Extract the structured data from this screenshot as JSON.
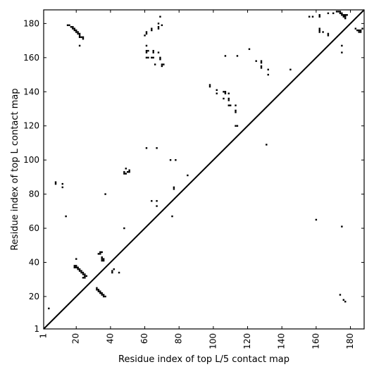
{
  "chart_data": {
    "type": "scatter",
    "title": "",
    "xlabel": "Residue index of top L/5 contact map",
    "ylabel": "Residue index of top L contact map",
    "xlim": [
      1,
      188
    ],
    "ylim": [
      1,
      188
    ],
    "xticks": [
      1,
      20,
      40,
      60,
      80,
      100,
      120,
      140,
      160,
      180
    ],
    "yticks": [
      1,
      20,
      40,
      60,
      80,
      100,
      120,
      140,
      160,
      180
    ],
    "xtick_labels": [
      "1",
      "20",
      "40",
      "60",
      "80",
      "100",
      "120",
      "140",
      "160",
      "180"
    ],
    "ytick_labels": [
      "1",
      "20",
      "40",
      "60",
      "80",
      "100",
      "120",
      "140",
      "160",
      "180"
    ],
    "diagonal": true,
    "grid": false,
    "marker": "square",
    "point_color": "#000000",
    "upper_triangle_contacts": [
      [
        15,
        179
      ],
      [
        16,
        179
      ],
      [
        17,
        178
      ],
      [
        18,
        178
      ],
      [
        18,
        177
      ],
      [
        19,
        177
      ],
      [
        19,
        176
      ],
      [
        20,
        176
      ],
      [
        20,
        175
      ],
      [
        21,
        175
      ],
      [
        21,
        174
      ],
      [
        22,
        174
      ],
      [
        22,
        173
      ],
      [
        22,
        172
      ],
      [
        23,
        172
      ],
      [
        24,
        172
      ],
      [
        24,
        171
      ],
      [
        22,
        167
      ],
      [
        60,
        173
      ],
      [
        61,
        174
      ],
      [
        61,
        175
      ],
      [
        64,
        176
      ],
      [
        64,
        177
      ],
      [
        68,
        177
      ],
      [
        68,
        178
      ],
      [
        68,
        180
      ],
      [
        69,
        184
      ],
      [
        70,
        179
      ],
      [
        61,
        167
      ],
      [
        61,
        164
      ],
      [
        61,
        163
      ],
      [
        62,
        164
      ],
      [
        65,
        164
      ],
      [
        65,
        163
      ],
      [
        68,
        163
      ],
      [
        61,
        160
      ],
      [
        62,
        160
      ],
      [
        64,
        160
      ],
      [
        65,
        160
      ],
      [
        69,
        160
      ],
      [
        69,
        159
      ],
      [
        66,
        156
      ],
      [
        70,
        156
      ],
      [
        70,
        155
      ],
      [
        71,
        156
      ],
      [
        61,
        107
      ],
      [
        67,
        107
      ],
      [
        75,
        100
      ],
      [
        78,
        100
      ],
      [
        77,
        84
      ],
      [
        77,
        83
      ],
      [
        85,
        91
      ],
      [
        76,
        67
      ],
      [
        98,
        144
      ],
      [
        98,
        143
      ],
      [
        102,
        141
      ],
      [
        102,
        139
      ],
      [
        106,
        140
      ],
      [
        107,
        140
      ],
      [
        107,
        139
      ],
      [
        106,
        136
      ],
      [
        109,
        139
      ],
      [
        109,
        136
      ],
      [
        109,
        135
      ],
      [
        109,
        132
      ],
      [
        110,
        132
      ],
      [
        113,
        132
      ],
      [
        113,
        129
      ],
      [
        113,
        128
      ],
      [
        113,
        120
      ],
      [
        114,
        120
      ],
      [
        107,
        161
      ],
      [
        114,
        161
      ],
      [
        121,
        165
      ],
      [
        125,
        158
      ],
      [
        128,
        158
      ],
      [
        128,
        157
      ],
      [
        128,
        155
      ],
      [
        128,
        154
      ],
      [
        132,
        153
      ],
      [
        132,
        150
      ],
      [
        131,
        109
      ],
      [
        145,
        153
      ],
      [
        156,
        184
      ],
      [
        158,
        184
      ],
      [
        162,
        185
      ],
      [
        162,
        184
      ],
      [
        162,
        177
      ],
      [
        162,
        176
      ],
      [
        162,
        175
      ],
      [
        164,
        175
      ],
      [
        167,
        174
      ],
      [
        167,
        173
      ],
      [
        167,
        186
      ],
      [
        170,
        186
      ],
      [
        172,
        187
      ],
      [
        173,
        187
      ],
      [
        174,
        187
      ],
      [
        174,
        186
      ],
      [
        175,
        186
      ],
      [
        175,
        185
      ],
      [
        176,
        185
      ],
      [
        176,
        184
      ],
      [
        177,
        185
      ],
      [
        177,
        184
      ],
      [
        177,
        183
      ],
      [
        178,
        185
      ],
      [
        175,
        167
      ],
      [
        175,
        163
      ],
      [
        183,
        177
      ],
      [
        184,
        176
      ],
      [
        185,
        176
      ],
      [
        185,
        175
      ],
      [
        186,
        175
      ],
      [
        186,
        176
      ],
      [
        187,
        177
      ]
    ],
    "lower_triangle_contacts": [
      [
        4,
        13
      ],
      [
        8,
        87
      ],
      [
        8,
        86
      ],
      [
        12,
        86
      ],
      [
        12,
        84
      ],
      [
        14,
        67
      ],
      [
        19,
        38
      ],
      [
        20,
        38
      ],
      [
        20,
        37
      ],
      [
        21,
        37
      ],
      [
        21,
        36
      ],
      [
        22,
        36
      ],
      [
        22,
        35
      ],
      [
        23,
        35
      ],
      [
        23,
        34
      ],
      [
        24,
        34
      ],
      [
        24,
        33
      ],
      [
        25,
        33
      ],
      [
        25,
        32
      ],
      [
        26,
        32
      ],
      [
        20,
        42
      ],
      [
        19,
        37
      ],
      [
        24,
        31
      ],
      [
        25,
        31
      ],
      [
        32,
        25
      ],
      [
        32,
        24
      ],
      [
        33,
        24
      ],
      [
        33,
        23
      ],
      [
        34,
        23
      ],
      [
        34,
        22
      ],
      [
        35,
        22
      ],
      [
        35,
        21
      ],
      [
        36,
        21
      ],
      [
        36,
        20
      ],
      [
        37,
        20
      ],
      [
        33,
        45
      ],
      [
        34,
        45
      ],
      [
        34,
        46
      ],
      [
        35,
        46
      ],
      [
        35,
        43
      ],
      [
        35,
        42
      ],
      [
        36,
        42
      ],
      [
        35,
        41
      ],
      [
        36,
        41
      ],
      [
        37,
        80
      ],
      [
        41,
        34
      ],
      [
        41,
        35
      ],
      [
        42,
        36
      ],
      [
        45,
        34
      ],
      [
        48,
        60
      ],
      [
        48,
        93
      ],
      [
        48,
        92
      ],
      [
        49,
        92
      ],
      [
        49,
        95
      ],
      [
        50,
        93
      ],
      [
        51,
        93
      ],
      [
        51,
        94
      ],
      [
        64,
        76
      ],
      [
        67,
        76
      ],
      [
        67,
        73
      ],
      [
        160,
        65
      ],
      [
        175,
        61
      ],
      [
        174,
        21
      ],
      [
        176,
        18
      ],
      [
        177,
        17
      ]
    ]
  }
}
